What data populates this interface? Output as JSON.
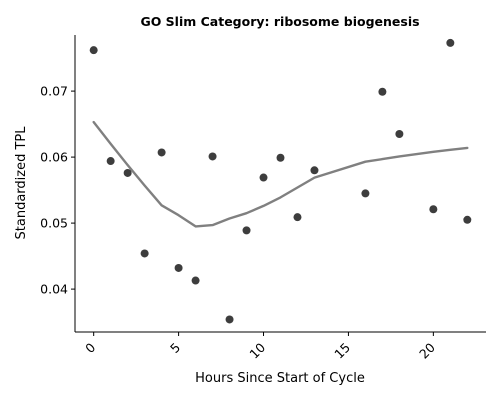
{
  "chart_data": {
    "type": "scatter",
    "title": "GO Slim Category: ribosome biogenesis",
    "xlabel": "Hours Since Start of Cycle",
    "ylabel": "Standardized TPL",
    "xlim": [
      -1.1,
      23.1
    ],
    "ylim": [
      0.0335,
      0.0785
    ],
    "x_ticks": [
      0,
      5,
      10,
      15,
      20
    ],
    "y_ticks": [
      0.04,
      0.05,
      0.06,
      0.07
    ],
    "grid": false,
    "legend": "none",
    "point_color": "#333333",
    "trend_color": "#808080",
    "points": [
      {
        "x": 0,
        "y": 0.0762
      },
      {
        "x": 1,
        "y": 0.0594
      },
      {
        "x": 2,
        "y": 0.0576
      },
      {
        "x": 3,
        "y": 0.0454
      },
      {
        "x": 4,
        "y": 0.0607
      },
      {
        "x": 5,
        "y": 0.0432
      },
      {
        "x": 6,
        "y": 0.0413
      },
      {
        "x": 7,
        "y": 0.0601
      },
      {
        "x": 8,
        "y": 0.0354
      },
      {
        "x": 9,
        "y": 0.0489
      },
      {
        "x": 10,
        "y": 0.0569
      },
      {
        "x": 11,
        "y": 0.0599
      },
      {
        "x": 12,
        "y": 0.0509
      },
      {
        "x": 13,
        "y": 0.058
      },
      {
        "x": 16,
        "y": 0.0545
      },
      {
        "x": 17,
        "y": 0.0699
      },
      {
        "x": 18,
        "y": 0.0635
      },
      {
        "x": 20,
        "y": 0.0521
      },
      {
        "x": 21,
        "y": 0.0773
      },
      {
        "x": 22,
        "y": 0.0505
      }
    ],
    "trend": [
      {
        "x": 0,
        "y": 0.0653
      },
      {
        "x": 1,
        "y": 0.062
      },
      {
        "x": 2,
        "y": 0.0588
      },
      {
        "x": 3,
        "y": 0.0557
      },
      {
        "x": 4,
        "y": 0.0527
      },
      {
        "x": 5,
        "y": 0.0512
      },
      {
        "x": 6,
        "y": 0.0495
      },
      {
        "x": 7,
        "y": 0.0497
      },
      {
        "x": 8,
        "y": 0.0507
      },
      {
        "x": 9,
        "y": 0.0515
      },
      {
        "x": 10,
        "y": 0.0526
      },
      {
        "x": 11,
        "y": 0.0539
      },
      {
        "x": 12,
        "y": 0.0554
      },
      {
        "x": 13,
        "y": 0.0569
      },
      {
        "x": 16,
        "y": 0.0593
      },
      {
        "x": 17,
        "y": 0.0597
      },
      {
        "x": 18,
        "y": 0.0601
      },
      {
        "x": 20,
        "y": 0.0608
      },
      {
        "x": 21,
        "y": 0.0611
      },
      {
        "x": 22,
        "y": 0.0614
      }
    ]
  }
}
